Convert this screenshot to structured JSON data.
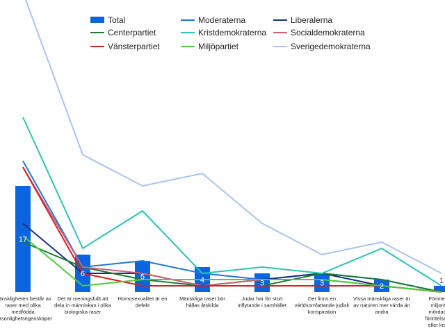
{
  "chart_data": {
    "type": "bar",
    "title": "",
    "xlabel": "",
    "ylabel": "",
    "ylim": [
      0,
      40
    ],
    "grid": false,
    "legend_position": "top",
    "categories": [
      "Mänskligheten består av raser med olika medfödda personlighetsegenskaper",
      "Det är meningsfullt att dela in människan i olika biologiska raser",
      "Homosexualitet är en defekt",
      "Mänskliga raser bör hållas åtskilda",
      "Judar har för stort inflytande i samhället",
      "Det finns en världsomfattande judisk konspiration",
      "Vissa mänskliga raser är av naturen mer värda än andra",
      "Förintelsen är en myt. Nazisternas mördades i förintelselägren eller kraftigt"
    ],
    "category_lines": [
      [
        "Mänskligheten består av",
        "raser med olika",
        "medfödda",
        "personlighetsegenskaper"
      ],
      [
        "Det är meningsfullt att",
        "dela in människan i olika",
        "biologiska raser"
      ],
      [
        "Homosexualitet är en",
        "defekt"
      ],
      [
        "Mänskliga raser bör",
        "hållas åtskilda"
      ],
      [
        "Judar har för stort",
        "inflytande i samhället"
      ],
      [
        "Det finns en",
        "världsomfattande judisk",
        "konspiration"
      ],
      [
        "Vissa mänskliga raser är",
        "av naturen mer värda än",
        "andra"
      ],
      [
        "Förintelsen",
        "miljontals",
        "mördades i",
        "förintelseläger",
        "eller kraftigt"
      ]
    ],
    "bar_series": {
      "name": "Total",
      "color": "#0b64e0",
      "values": [
        17,
        6,
        5,
        4,
        3,
        3,
        2,
        1
      ],
      "labels": [
        "17",
        "6",
        "5",
        "4",
        "3",
        "3",
        "2",
        "1"
      ]
    },
    "line_series": [
      {
        "name": "Moderaterna",
        "color": "#1f77d4",
        "values": [
          21,
          4,
          5,
          3,
          2,
          3,
          2,
          0
        ]
      },
      {
        "name": "Liberalerna",
        "color": "#17307f",
        "values": [
          11,
          3,
          3,
          1,
          2,
          3,
          1,
          0
        ]
      },
      {
        "name": "Centerpartiet",
        "color": "#1e7a34",
        "values": [
          8,
          4,
          2,
          1,
          1,
          3,
          2,
          0
        ]
      },
      {
        "name": "Kristdemokraterna",
        "color": "#28c4b4",
        "values": [
          28,
          7,
          13,
          3,
          4,
          3,
          7,
          1
        ]
      },
      {
        "name": "Socialdemokraterna",
        "color": "#d45e7a",
        "values": [
          20,
          4,
          3,
          1,
          2,
          2,
          1,
          0
        ]
      },
      {
        "name": "Vänsterpartiet",
        "color": "#d42020",
        "values": [
          20,
          3,
          1,
          1,
          1,
          1,
          1,
          0
        ]
      },
      {
        "name": "Miljöpartiet",
        "color": "#49cc3c",
        "values": [
          9,
          1,
          2,
          2,
          2,
          2,
          1,
          0
        ]
      },
      {
        "name": "Sverigedemokraterna",
        "color": "#a8c4ec",
        "values": [
          48,
          22,
          17,
          19,
          11,
          6,
          8,
          3
        ]
      }
    ]
  }
}
